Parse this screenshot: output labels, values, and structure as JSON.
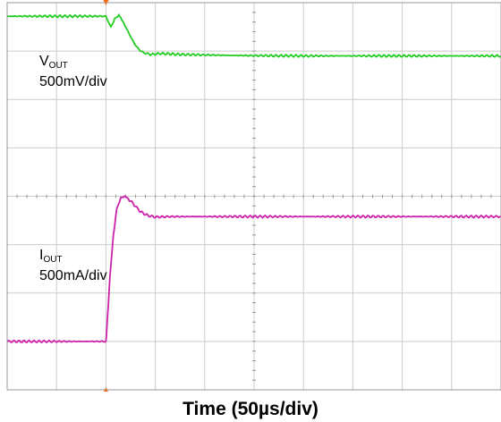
{
  "chart_data": {
    "type": "line",
    "title": "(",
    "title_suffix": "…",
    "xlabel": "Time (50µs/div)",
    "divisions": {
      "x": 10,
      "y": 8
    },
    "grid": true,
    "trigger_div": 2,
    "series": [
      {
        "name": "VOUT",
        "name_base": "V",
        "name_sub": "OUT",
        "scale": "500mV/div",
        "color": "#22cc22",
        "x_div": [
          0,
          2.0,
          2.05,
          2.1,
          2.18,
          2.26,
          2.35,
          2.45,
          2.55,
          2.65,
          2.75,
          2.9,
          3.1,
          3.5,
          4.5,
          6,
          8,
          10
        ],
        "y_div": [
          7.72,
          7.72,
          7.6,
          7.5,
          7.68,
          7.74,
          7.6,
          7.4,
          7.2,
          7.05,
          6.97,
          6.93,
          6.95,
          6.93,
          6.91,
          6.9,
          6.9,
          6.9
        ]
      },
      {
        "name": "IOUT",
        "name_base": "I",
        "name_sub": "OUT",
        "scale": "500mA/div",
        "color": "#cc22aa",
        "x_div": [
          0,
          2.0,
          2.02,
          2.08,
          2.15,
          2.22,
          2.3,
          2.38,
          2.45,
          2.55,
          2.7,
          2.85,
          3.0,
          3.3,
          4,
          6,
          8,
          10
        ],
        "y_div": [
          1.0,
          1.0,
          1.3,
          2.3,
          3.2,
          3.75,
          3.97,
          3.99,
          3.95,
          3.85,
          3.68,
          3.6,
          3.57,
          3.58,
          3.58,
          3.58,
          3.58,
          3.58
        ]
      }
    ]
  }
}
